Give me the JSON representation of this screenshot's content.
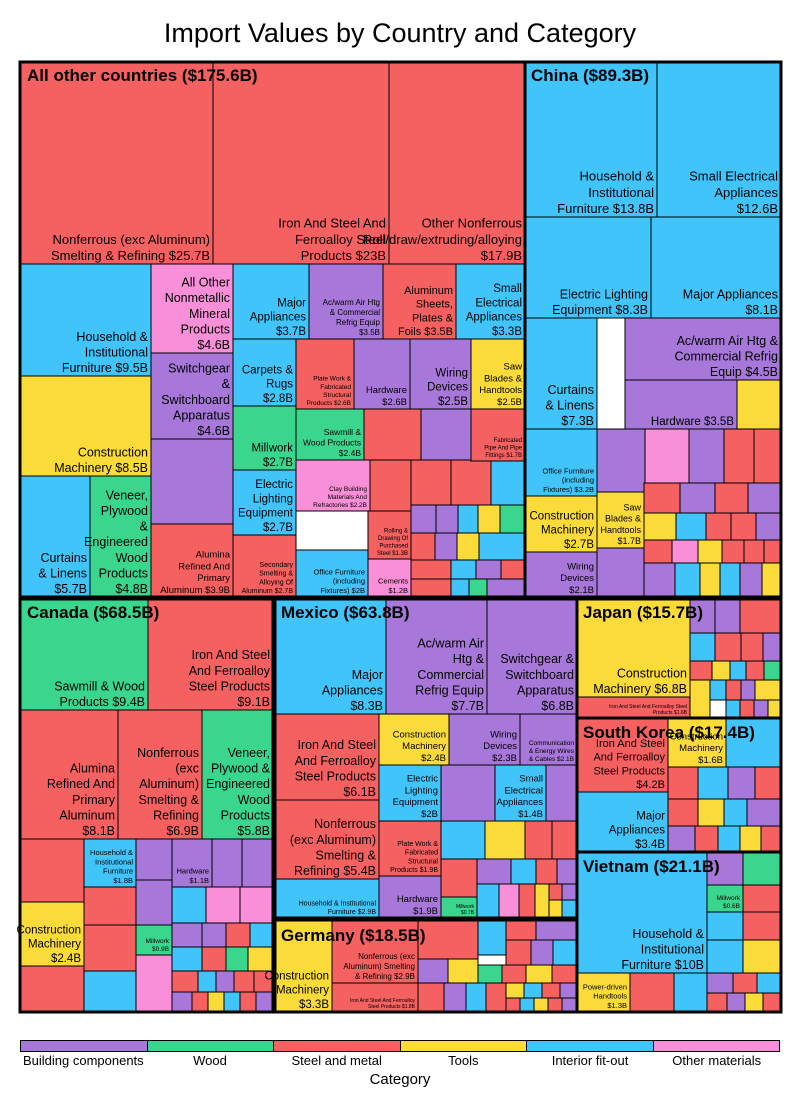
{
  "title": "Import Values by Country and Category",
  "legend": {
    "title": "Category",
    "items": [
      {
        "name": "Building components",
        "color": "#a777d9"
      },
      {
        "name": "Wood",
        "color": "#3bd68e"
      },
      {
        "name": "Steel and metal",
        "color": "#f56060"
      },
      {
        "name": "Tools",
        "color": "#fadb3a"
      },
      {
        "name": "Interior fit-out",
        "color": "#41c4fa"
      },
      {
        "name": "Other materials",
        "color": "#f98fd8"
      }
    ]
  },
  "chart_data": {
    "type": "treemap",
    "title": "Import Values by Country and Category",
    "unit": "$B",
    "countries": [
      {
        "name": "All other countries",
        "label": "All other countries ($175.6B)",
        "total": 175.6,
        "items": [
          {
            "name": "Nonferrous (exc Aluminum) Smelting & Refining",
            "category": "Steel and metal",
            "value": 25.7,
            "label": "Nonferrous (exc Aluminum) Smelting & Refining $25.7B"
          },
          {
            "name": "Iron And Steel And Ferroalloy Steel Products",
            "category": "Steel and metal",
            "value": 23.0,
            "label": "Iron And Steel And Ferroalloy Steel Products $23B"
          },
          {
            "name": "Other Nonferrous Roll/draw/extruding/alloying",
            "category": "Steel and metal",
            "value": 17.9,
            "label": "Other Nonferrous Roll/draw/extruding/alloying $17.9B"
          },
          {
            "name": "Household & Institutional Furniture",
            "category": "Interior fit-out",
            "value": 9.5,
            "label": "Household & Institutional Furniture $9.5B"
          },
          {
            "name": "All Other Nonmetallic Mineral Products",
            "category": "Other materials",
            "value": 4.6,
            "label": "All Other Nonmetallic Mineral Products $4.6B"
          },
          {
            "name": "Major Appliances",
            "category": "Interior fit-out",
            "value": 3.7,
            "label": "Major Appliances $3.7B"
          },
          {
            "name": "Ac/warm Air Htg & Commercial Refrig Equip",
            "category": "Building components",
            "value": 3.5,
            "label": "Ac/warm Air Htg & Commercial Refrig Equip $3.5B"
          },
          {
            "name": "Aluminum Sheets, Plates & Foils",
            "category": "Steel and metal",
            "value": 3.5,
            "label": "Aluminum Sheets, Plates & Foils $3.5B"
          },
          {
            "name": "Small Electrical Appliances",
            "category": "Interior fit-out",
            "value": 3.3,
            "label": "Small Electrical Appliances $3.3B"
          },
          {
            "name": "Construction Machinery",
            "category": "Tools",
            "value": 8.5,
            "label": "Construction Machinery $8.5B"
          },
          {
            "name": "Switchgear & Switchboard Apparatus",
            "category": "Building components",
            "value": 4.6,
            "label": "Switchgear & Switchboard Apparatus $4.6B"
          },
          {
            "name": "Carpets & Rugs",
            "category": "Interior fit-out",
            "value": 2.8,
            "label": "Carpets & Rugs $2.8B"
          },
          {
            "name": "Plate Work & Fabricated Structural Products",
            "category": "Steel and metal",
            "value": 2.6,
            "label": "Plate Work & Fabricated Structural Products $2.6B"
          },
          {
            "name": "Hardware",
            "category": "Building components",
            "value": 2.6,
            "label": "Hardware $2.6B"
          },
          {
            "name": "Wiring Devices",
            "category": "Building components",
            "value": 2.5,
            "label": "Wiring Devices $2.5B"
          },
          {
            "name": "Saw Blades & Handtools",
            "category": "Tools",
            "value": 2.5,
            "label": "Saw Blades & Handtools $2.5B"
          },
          {
            "name": "Millwork",
            "category": "Wood",
            "value": 2.7,
            "label": "Millwork $2.7B"
          },
          {
            "name": "Sawmill & Wood Products",
            "category": "Wood",
            "value": 2.4,
            "label": "Sawmill & Wood Products $2.4B"
          },
          {
            "name": "Fabricated Pipe And Pipe Fittings",
            "category": "Steel and metal",
            "value": 1.7,
            "label": "Fabricated Pipe And Pipe Fittings $1.7B"
          },
          {
            "name": "Clay Building Materials And Refractories",
            "category": "Other materials",
            "value": 2.2,
            "label": "Clay Building Materials And Refractories $2.2B"
          },
          {
            "name": "Electric Lighting Equipment",
            "category": "Interior fit-out",
            "value": 2.7,
            "label": "Electric Lighting Equipment $2.7B"
          },
          {
            "name": "Curtains & Linens",
            "category": "Interior fit-out",
            "value": 5.7,
            "label": "Curtains & Linens $5.7B"
          },
          {
            "name": "Veneer, Plywood & Engineered Wood Products",
            "category": "Wood",
            "value": 4.8,
            "label": "Veneer, Plywood & Engineered Wood Products $4.8B"
          },
          {
            "name": "Alumina Refined And Primary Aluminum",
            "category": "Steel and metal",
            "value": 3.9,
            "label": "Alumina Refined And Primary Aluminum $3.9B"
          },
          {
            "name": "Secondary Smelting & Alloying Of Aluminum",
            "category": "Steel and metal",
            "value": 2.7,
            "label": "Secondary Smelting & Alloying Of Aluminum $2.7B"
          },
          {
            "name": "Office Furniture (including Fixtures)",
            "category": "Interior fit-out",
            "value": 2.0,
            "label": "Office Furniture (including Fixtures) $2B"
          },
          {
            "name": "Rolling & Drawing Of Purchased Steel",
            "category": "Steel and metal",
            "value": 1.3,
            "label": "Rolling & Drawing Of Purchased Steel $1.3B"
          },
          {
            "name": "Cements",
            "category": "Other materials",
            "value": 1.2,
            "label": "Cements $1.2B"
          }
        ]
      },
      {
        "name": "China",
        "label": "China ($89.3B)",
        "total": 89.3,
        "items": [
          {
            "name": "Household & Institutional Furniture",
            "category": "Interior fit-out",
            "value": 13.8,
            "label": "Household & Institutional Furniture $13.8B"
          },
          {
            "name": "Small Electrical Appliances",
            "category": "Interior fit-out",
            "value": 12.6,
            "label": "Small Electrical Appliances $12.6B"
          },
          {
            "name": "Electric Lighting Equipment",
            "category": "Interior fit-out",
            "value": 8.3,
            "label": "Electric Lighting Equipment $8.3B"
          },
          {
            "name": "Major Appliances",
            "category": "Interior fit-out",
            "value": 8.1,
            "label": "Major Appliances $8.1B"
          },
          {
            "name": "Curtains & Linens",
            "category": "Interior fit-out",
            "value": 7.3,
            "label": "Curtains & Linens $7.3B"
          },
          {
            "name": "Ac/warm Air Htg & Commercial Refrig Equip",
            "category": "Building components",
            "value": 4.5,
            "label": "Ac/warm Air Htg & Commercial Refrig Equip $4.5B"
          },
          {
            "name": "Hardware",
            "category": "Building components",
            "value": 3.5,
            "label": "Hardware $3.5B"
          },
          {
            "name": "Office Furniture (including Fixtures)",
            "category": "Interior fit-out",
            "value": 3.2,
            "label": "Office Furniture (including Fixtures) $3.2B"
          },
          {
            "name": "Construction Machinery",
            "category": "Tools",
            "value": 2.7,
            "label": "Construction Machinery $2.7B"
          },
          {
            "name": "Saw Blades & Handtools",
            "category": "Tools",
            "value": 1.7,
            "label": "Saw Blades & Handtools $1.7B"
          },
          {
            "name": "Wiring Devices",
            "category": "Building components",
            "value": 2.1,
            "label": "Wiring Devices $2.1B"
          }
        ]
      },
      {
        "name": "Canada",
        "label": "Canada ($68.5B)",
        "total": 68.5,
        "items": [
          {
            "name": "Sawmill & Wood Products",
            "category": "Wood",
            "value": 9.4,
            "label": "Sawmill & Wood Products $9.4B"
          },
          {
            "name": "Iron And Steel And Ferroalloy Steel Products",
            "category": "Steel and metal",
            "value": 9.1,
            "label": "Iron And Steel And Ferroalloy Steel Products $9.1B"
          },
          {
            "name": "Alumina Refined And Primary Aluminum",
            "category": "Steel and metal",
            "value": 8.1,
            "label": "Alumina Refined And Primary Aluminum $8.1B"
          },
          {
            "name": "Nonferrous (exc Aluminum) Smelting & Refining",
            "category": "Steel and metal",
            "value": 6.9,
            "label": "Nonferrous (exc Aluminum) Smelting & Refining $6.9B"
          },
          {
            "name": "Veneer, Plywood & Engineered Wood Products",
            "category": "Wood",
            "value": 5.8,
            "label": "Veneer, Plywood & Engineered Wood Products $5.8B"
          },
          {
            "name": "Household & Institutional Furniture",
            "category": "Interior fit-out",
            "value": 1.8,
            "label": "Household & Institutional Furniture $1.8B"
          },
          {
            "name": "Hardware",
            "category": "Building components",
            "value": 1.1,
            "label": "Hardware $1.1B"
          },
          {
            "name": "Construction Machinery",
            "category": "Tools",
            "value": 2.4,
            "label": "Construction Machinery $2.4B"
          },
          {
            "name": "Millwork",
            "category": "Wood",
            "value": 0.9,
            "label": "Millwork $0.9B"
          }
        ]
      },
      {
        "name": "Mexico",
        "label": "Mexico ($63.8B)",
        "total": 63.8,
        "items": [
          {
            "name": "Major Appliances",
            "category": "Interior fit-out",
            "value": 8.3,
            "label": "Major Appliances $8.3B"
          },
          {
            "name": "Ac/warm Air Htg & Commercial Refrig Equip",
            "category": "Building components",
            "value": 7.7,
            "label": "Ac/warm Air Htg & Commercial Refrig Equip $7.7B"
          },
          {
            "name": "Switchgear & Switchboard Apparatus",
            "category": "Building components",
            "value": 6.8,
            "label": "Switchgear & Switchboard Apparatus $6.8B"
          },
          {
            "name": "Iron And Steel And Ferroalloy Steel Products",
            "category": "Steel and metal",
            "value": 6.1,
            "label": "Iron And Steel And Ferroalloy Steel Products $6.1B"
          },
          {
            "name": "Construction Machinery",
            "category": "Tools",
            "value": 2.4,
            "label": "Construction Machinery $2.4B"
          },
          {
            "name": "Wiring Devices",
            "category": "Building components",
            "value": 2.3,
            "label": "Wiring Devices $2.3B"
          },
          {
            "name": "Communication & Energy Wires & Cables",
            "category": "Building components",
            "value": 2.1,
            "label": "Communication & Energy Wires & Cables $2.1B"
          },
          {
            "name": "Electric Lighting Equipment",
            "category": "Interior fit-out",
            "value": 2.0,
            "label": "Electric Lighting Equipment $2B"
          },
          {
            "name": "Small Electrical Appliances",
            "category": "Interior fit-out",
            "value": 1.4,
            "label": "Small Electrical Appliances $1.4B"
          },
          {
            "name": "Nonferrous (exc Aluminum) Smelting & Refining",
            "category": "Steel and metal",
            "value": 5.4,
            "label": "Nonferrous (exc Aluminum) Smelting & Refining $5.4B"
          },
          {
            "name": "Plate Work & Fabricated Structural Products",
            "category": "Steel and metal",
            "value": 1.9,
            "label": "Plate Work & Fabricated Structural Products $1.9B"
          },
          {
            "name": "Household & Institutional Furniture",
            "category": "Interior fit-out",
            "value": 2.9,
            "label": "Household & Institutional Furniture $2.9B"
          },
          {
            "name": "Hardware",
            "category": "Building components",
            "value": 1.9,
            "label": "Hardware $1.9B"
          },
          {
            "name": "Millwork",
            "category": "Wood",
            "value": 0.7,
            "label": "Millwork $0.7B"
          }
        ]
      },
      {
        "name": "Japan",
        "label": "Japan ($15.7B)",
        "total": 15.7,
        "items": [
          {
            "name": "Construction Machinery",
            "category": "Tools",
            "value": 6.8,
            "label": "Construction Machinery $6.8B"
          },
          {
            "name": "Iron And Steel And Ferroalloy Steel Products",
            "category": "Steel and metal",
            "value": 1.6,
            "label": "Iron And Steel And Ferroalloy Steel Products $1.6B"
          }
        ]
      },
      {
        "name": "South Korea",
        "label": "South Korea ($17.4B)",
        "total": 17.4,
        "items": [
          {
            "name": "Iron And Steel And Ferroalloy Steel Products",
            "category": "Steel and metal",
            "value": 4.2,
            "label": "Iron And Steel And Ferroalloy Steel Products $4.2B"
          },
          {
            "name": "Construction Machinery",
            "category": "Tools",
            "value": 1.6,
            "label": "Construction Machinery $1.6B"
          },
          {
            "name": "Major Appliances",
            "category": "Interior fit-out",
            "value": 3.4,
            "label": "Major Appliances $3.4B"
          }
        ]
      },
      {
        "name": "Vietnam",
        "label": "Vietnam ($21.1B)",
        "total": 21.1,
        "items": [
          {
            "name": "Household & Institutional Furniture",
            "category": "Interior fit-out",
            "value": 10.0,
            "label": "Household & Institutional Furniture $10B"
          },
          {
            "name": "Millwork",
            "category": "Wood",
            "value": 0.6,
            "label": "Millwork $0.6B"
          },
          {
            "name": "Power-driven Handtools",
            "category": "Tools",
            "value": 1.3,
            "label": "Power-driven Handtools $1.3B"
          }
        ]
      },
      {
        "name": "Germany",
        "label": "Germany ($18.5B)",
        "total": 18.5,
        "items": [
          {
            "name": "Construction Machinery",
            "category": "Tools",
            "value": 3.3,
            "label": "Construction Machinery $3.3B"
          },
          {
            "name": "Nonferrous (exc Aluminum) Smelting & Refining",
            "category": "Steel and metal",
            "value": 2.9,
            "label": "Nonferrous (exc Aluminum) Smelting & Refining $2.9B"
          },
          {
            "name": "Iron And Steel And Ferroalloy Steel Products",
            "category": "Steel and metal",
            "value": 1.8,
            "label": "Iron And Steel And Ferroalloy Steel Products $1.8B"
          }
        ]
      }
    ]
  }
}
